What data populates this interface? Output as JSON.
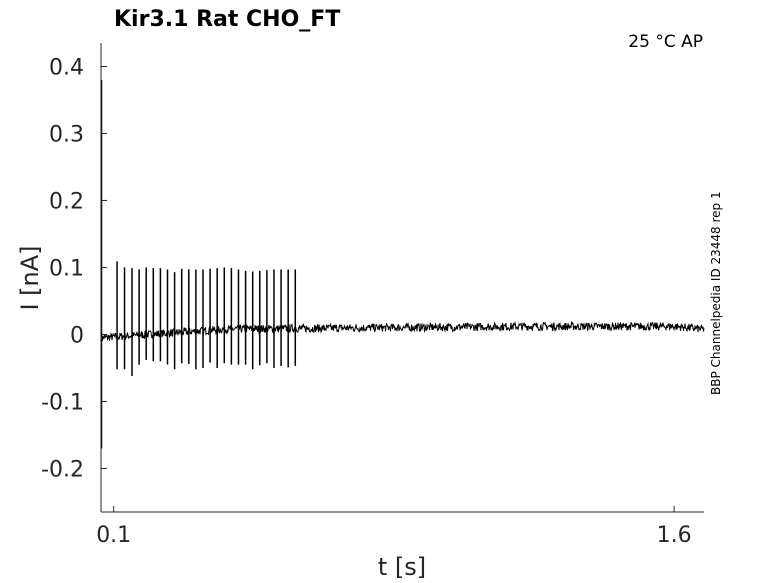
{
  "chart_data": {
    "type": "line",
    "title": "Kir3.1  Rat  CHO_FT",
    "condition": "25 °C  AP",
    "side_note": "BBP Channelpedia ID 23448 rep 1",
    "xlabel": "t [s]",
    "ylabel": "I [nA]",
    "xlim": [
      0.066,
      1.68
    ],
    "ylim": [
      -0.265,
      0.435
    ],
    "x_ticks": [
      0.1,
      1.6
    ],
    "x_tick_labels": [
      "0.1",
      "1.6"
    ],
    "y_ticks": [
      0.4,
      0.3,
      0.2,
      0.1,
      0,
      -0.1,
      -0.2
    ],
    "y_tick_labels": [
      "0.4",
      "0.3",
      "0.2",
      "0.1",
      "0",
      "-0.1",
      "-0.2"
    ],
    "grid": false,
    "series": [
      {
        "color": "#000000",
        "baseline": [
          [
            0.066,
            -0.005
          ],
          [
            0.4,
            0.008
          ],
          [
            0.8,
            0.01
          ],
          [
            1.2,
            0.012
          ],
          [
            1.6,
            0.012
          ],
          [
            1.68,
            0.008
          ]
        ],
        "noise_amplitude": 0.006,
        "onset_transient": {
          "x": 0.066,
          "peak": 0.38,
          "trough": -0.17
        },
        "spikes": [
          {
            "x": 0.109,
            "peak": 0.109,
            "trough": -0.052
          },
          {
            "x": 0.129,
            "peak": 0.1,
            "trough": -0.052
          },
          {
            "x": 0.149,
            "peak": 0.099,
            "trough": -0.062
          },
          {
            "x": 0.168,
            "peak": 0.097,
            "trough": -0.045
          },
          {
            "x": 0.187,
            "peak": 0.1,
            "trough": -0.038
          },
          {
            "x": 0.206,
            "peak": 0.099,
            "trough": -0.04
          },
          {
            "x": 0.225,
            "peak": 0.099,
            "trough": -0.04
          },
          {
            "x": 0.244,
            "peak": 0.097,
            "trough": -0.045
          },
          {
            "x": 0.263,
            "peak": 0.093,
            "trough": -0.052
          },
          {
            "x": 0.282,
            "peak": 0.098,
            "trough": -0.043
          },
          {
            "x": 0.301,
            "peak": 0.097,
            "trough": -0.044
          },
          {
            "x": 0.32,
            "peak": 0.097,
            "trough": -0.052
          },
          {
            "x": 0.339,
            "peak": 0.097,
            "trough": -0.05
          },
          {
            "x": 0.358,
            "peak": 0.098,
            "trough": -0.042
          },
          {
            "x": 0.377,
            "peak": 0.099,
            "trough": -0.05
          },
          {
            "x": 0.396,
            "peak": 0.1,
            "trough": -0.043
          },
          {
            "x": 0.415,
            "peak": 0.099,
            "trough": -0.045
          },
          {
            "x": 0.434,
            "peak": 0.097,
            "trough": -0.045
          },
          {
            "x": 0.453,
            "peak": 0.095,
            "trough": -0.045
          },
          {
            "x": 0.472,
            "peak": 0.094,
            "trough": -0.052
          },
          {
            "x": 0.491,
            "peak": 0.095,
            "trough": -0.046
          },
          {
            "x": 0.51,
            "peak": 0.096,
            "trough": -0.043
          },
          {
            "x": 0.529,
            "peak": 0.097,
            "trough": -0.05
          },
          {
            "x": 0.548,
            "peak": 0.097,
            "trough": -0.047
          },
          {
            "x": 0.567,
            "peak": 0.097,
            "trough": -0.049
          },
          {
            "x": 0.586,
            "peak": 0.097,
            "trough": -0.047
          }
        ]
      }
    ]
  }
}
